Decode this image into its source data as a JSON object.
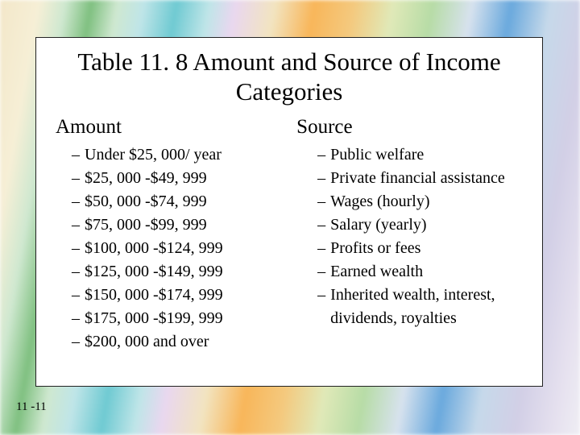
{
  "background": {
    "stripe_colors": [
      "#f3e7c9",
      "#f6efd6",
      "#cfe8d0",
      "#7fc080",
      "#cfe8d0",
      "#bfe5e8",
      "#6fcad2",
      "#bfe5e8",
      "#e9d7ef",
      "#f2e4c0",
      "#f8b65a",
      "#f4c97e",
      "#e0e9b8",
      "#b7dca6",
      "#d7e2ee",
      "#6aa9dd",
      "#c6d9ea",
      "#d2cfe6",
      "#e6e1ef",
      "#efeef4"
    ]
  },
  "slide": {
    "title": "Table 11. 8 Amount and Source of Income Categories",
    "title_fontsize": 31,
    "box": {
      "background_color": "#ffffff",
      "border_color": "#222222",
      "border_width": 1
    },
    "columns": {
      "amount": {
        "heading": "Amount",
        "heading_fontsize": 25,
        "item_fontsize": 20,
        "items": [
          "Under $25, 000/ year",
          "$25, 000 -$49, 999",
          "$50, 000 -$74, 999",
          "$75, 000 -$99, 999",
          "$100, 000 -$124, 999",
          "$125, 000 -$149, 999",
          "$150, 000 -$174, 999",
          "$175, 000 -$199, 999",
          "$200, 000 and over"
        ]
      },
      "source": {
        "heading": "Source",
        "heading_fontsize": 25,
        "item_fontsize": 20,
        "items": [
          "Public welfare",
          "Private financial assistance",
          "Wages (hourly)",
          "Salary (yearly)",
          "Profits or fees",
          "Earned wealth",
          "Inherited wealth, interest, dividends, royalties"
        ]
      }
    },
    "footer": "11 -11",
    "footer_fontsize": 15,
    "text_color": "#000000"
  }
}
